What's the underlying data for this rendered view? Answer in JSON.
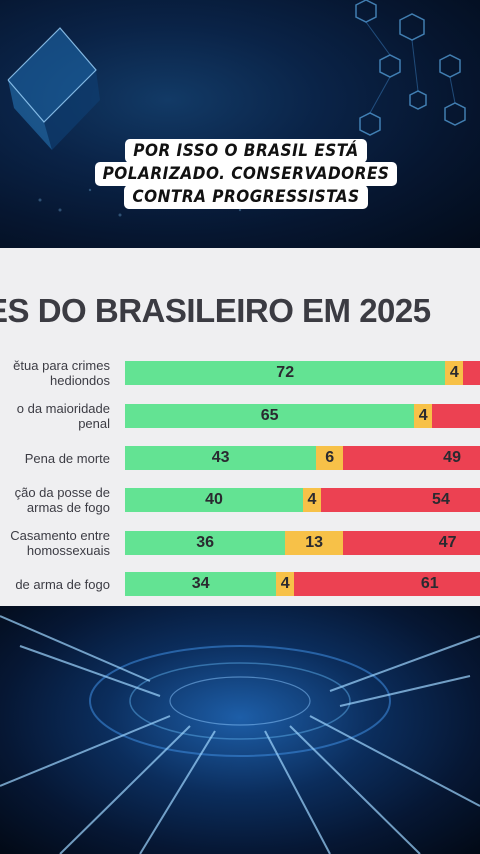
{
  "overlay_caption": {
    "lines": [
      "POR ISSO O BRASIL ESTÁ",
      "POLARIZADO. CONSERVADORES",
      "CONTRA PROGRESSISTAS"
    ]
  },
  "colors": {
    "favor": "#63e393",
    "neutral": "#f7c148",
    "contra": "#ec4152",
    "panel": "#efeff1"
  },
  "chart_data": {
    "type": "bar",
    "orientation": "horizontal-stacked",
    "title": "ES DO BRASILEIRO EM 2025",
    "categories": [
      "ětua para crimes\nhediondos",
      "o da maioridade\npenal",
      "Pena de morte",
      "ção da posse de\narmas de fogo",
      "Casamento entre\nhomossexuais",
      "de arma de fogo"
    ],
    "series": [
      {
        "values": [
          72,
          65,
          43,
          40,
          36,
          34
        ]
      },
      {
        "values": [
          4,
          4,
          6,
          4,
          13,
          4
        ]
      },
      {
        "values": [
          null,
          null,
          49,
          54,
          47,
          61
        ]
      }
    ],
    "xlim": [
      0,
      100
    ],
    "grid": false,
    "legend": "none"
  }
}
